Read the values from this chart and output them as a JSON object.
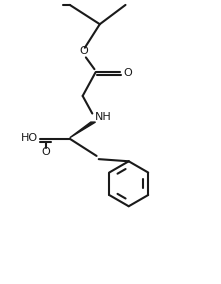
{
  "bg_color": "#ffffff",
  "line_color": "#1a1a1a",
  "line_width": 1.5,
  "figsize": [
    2.21,
    2.84
  ],
  "dpi": 100,
  "xlim": [
    0,
    10
  ],
  "ylim": [
    0,
    13
  ]
}
